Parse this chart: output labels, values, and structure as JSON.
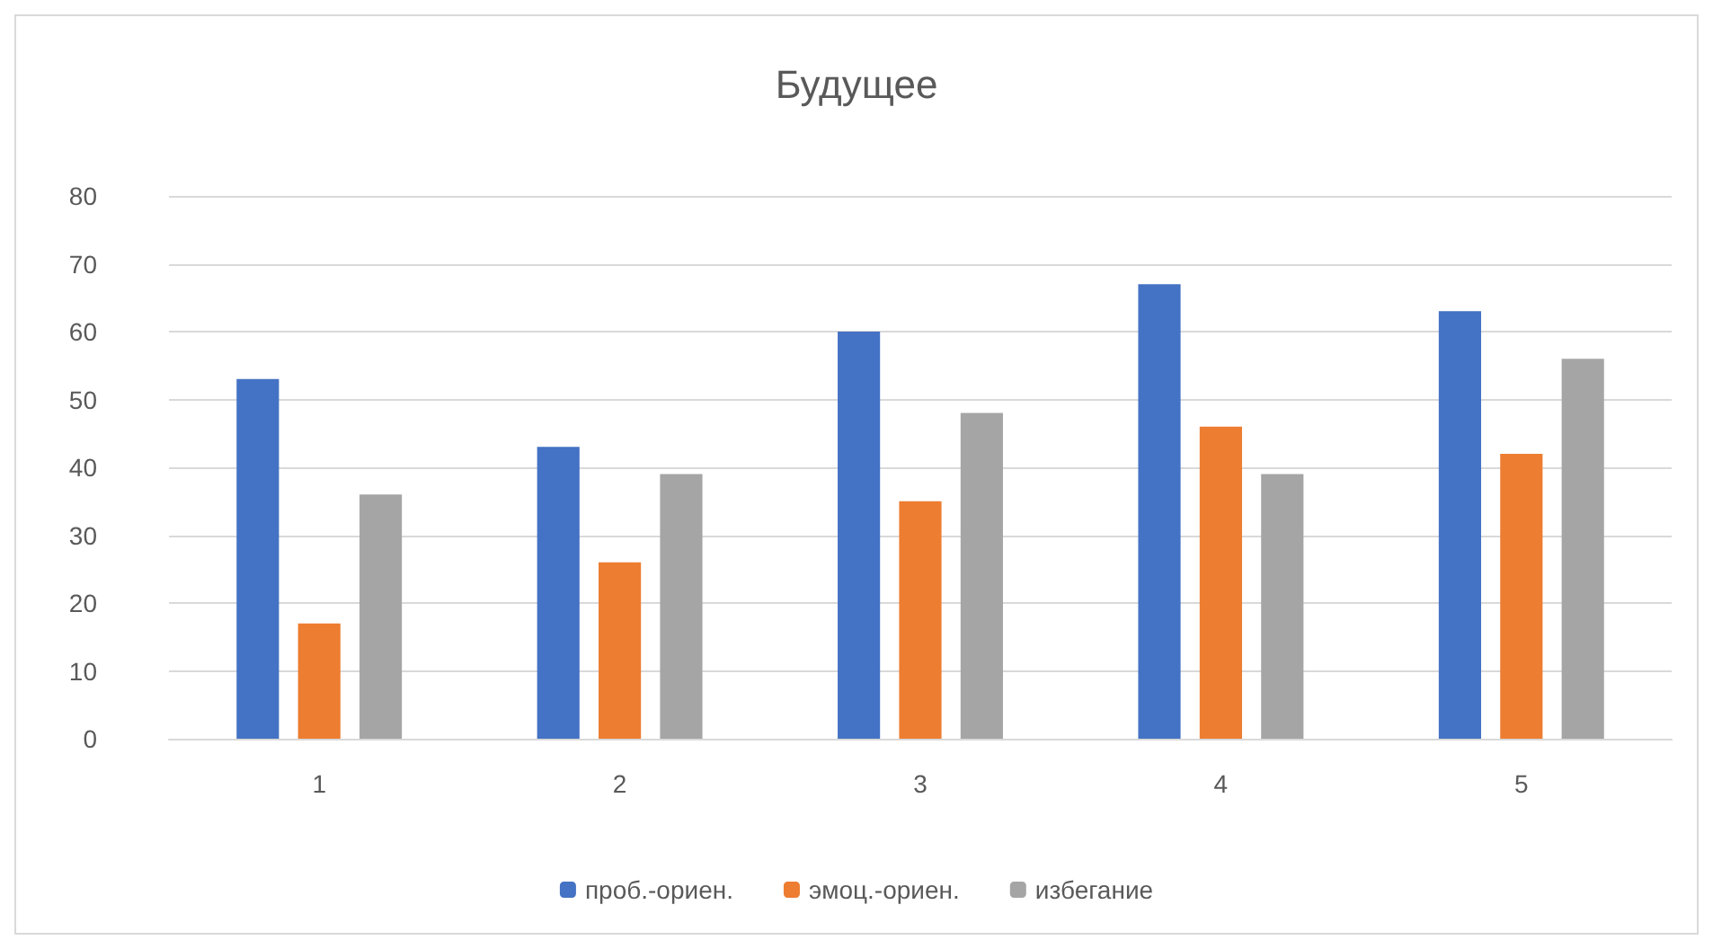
{
  "chart_data": {
    "type": "bar",
    "title": "Будущее",
    "categories": [
      "1",
      "2",
      "3",
      "4",
      "5"
    ],
    "series": [
      {
        "name": "проб.-ориен.",
        "color": "#4472c4",
        "values": [
          53,
          43,
          60,
          67,
          63
        ]
      },
      {
        "name": "эмоц.-ориен.",
        "color": "#ed7d31",
        "values": [
          17,
          26,
          35,
          46,
          42
        ]
      },
      {
        "name": "избегание",
        "color": "#a5a5a5",
        "values": [
          36,
          39,
          48,
          39,
          56
        ]
      }
    ],
    "ylim": [
      0,
      80
    ],
    "yticks": [
      0,
      10,
      20,
      30,
      40,
      50,
      60,
      70,
      80
    ],
    "grid": "y",
    "legend": "bottom"
  }
}
